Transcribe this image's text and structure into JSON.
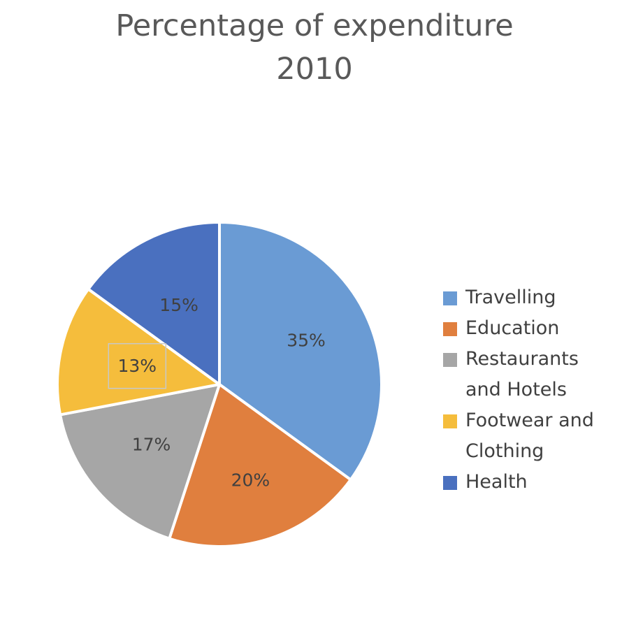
{
  "chart_data": {
    "type": "pie",
    "title": "Percentage of expenditure",
    "subtitle": "2010",
    "legend_position": "right",
    "slices": [
      {
        "label": "Travelling",
        "legend_label": "Travelling",
        "value": 35,
        "display": "35%",
        "color": "#6a9bd4"
      },
      {
        "label": "Education",
        "legend_label": "Education",
        "value": 20,
        "display": "20%",
        "color": "#e07f3e"
      },
      {
        "label": "Restaurants and Hotels",
        "legend_label": "Restaurants\nand Hotels",
        "value": 17,
        "display": "17%",
        "color": "#a6a6a6"
      },
      {
        "label": "Footwear and Clothing",
        "legend_label": "Footwear and\nClothing",
        "value": 13,
        "display": "13%",
        "color": "#f5bd3c"
      },
      {
        "label": "Health",
        "legend_label": "Health",
        "value": 15,
        "display": "15%",
        "color": "#4a70bf"
      }
    ]
  }
}
